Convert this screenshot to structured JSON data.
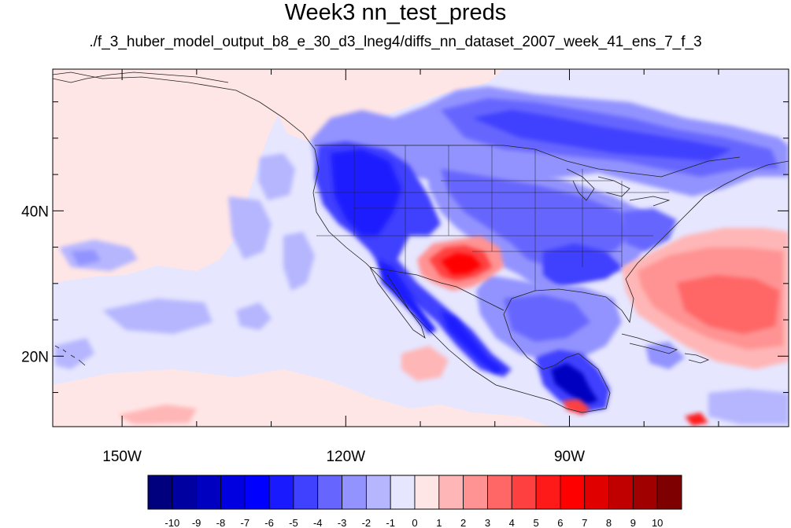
{
  "header": {
    "title": "Week3 nn_test_preds",
    "subtitle": "./f_3_huber_model_output_b8_e_30_d3_lneg4/diffs_nn_dataset_2007_week_41_ens_7_f_3"
  },
  "map": {
    "projection": "cylindrical-equidistant",
    "lon_range": [
      -159.3,
      -60.6
    ],
    "lat_range": [
      10.3,
      59.5
    ],
    "lon_ticks": [
      {
        "value": -150,
        "label": "150W"
      },
      {
        "value": -120,
        "label": "120W"
      },
      {
        "value": -90,
        "label": "90W"
      }
    ],
    "lat_ticks": [
      {
        "value": 20,
        "label": "20N"
      },
      {
        "value": 40,
        "label": "40N"
      }
    ],
    "ocean_background_color": "#e6e6ff",
    "boundaries": "coastlines, country and US state borders"
  },
  "colorbar": {
    "levels": [
      "-10",
      "-9",
      "-8",
      "-7",
      "-6",
      "-5",
      "-4",
      "-3",
      "-2",
      "-1",
      "0",
      "1",
      "2",
      "3",
      "4",
      "5",
      "6",
      "7",
      "8",
      "9",
      "10"
    ],
    "colors": [
      "#00007f",
      "#0000a0",
      "#0000c0",
      "#0000e0",
      "#0000ff",
      "#1a1aff",
      "#4040ff",
      "#6666ff",
      "#9393ff",
      "#b6b6ff",
      "#e6e6ff",
      "#ffe6e6",
      "#ffb6b6",
      "#ff9393",
      "#ff6666",
      "#ff4040",
      "#ff1a1a",
      "#ff0000",
      "#e00000",
      "#c00000",
      "#a00000",
      "#7f0000"
    ]
  }
}
